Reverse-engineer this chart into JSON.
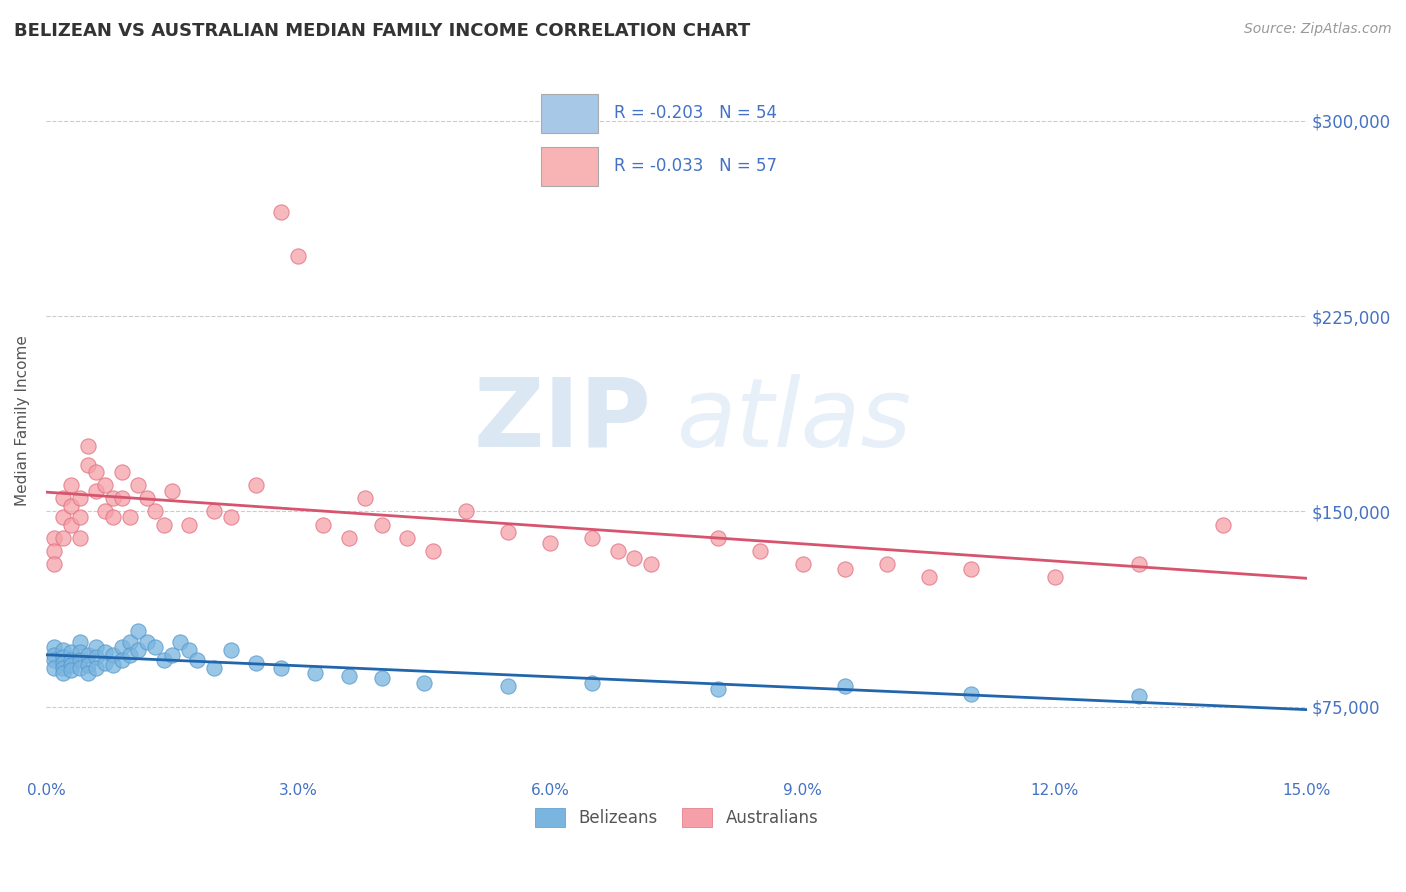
{
  "title": "BELIZEAN VS AUSTRALIAN MEDIAN FAMILY INCOME CORRELATION CHART",
  "source": "Source: ZipAtlas.com",
  "ylabel": "Median Family Income",
  "xlim": [
    0.0,
    0.15
  ],
  "ylim": [
    50000,
    320000
  ],
  "yticks": [
    75000,
    150000,
    225000,
    300000
  ],
  "ytick_labels": [
    "$75,000",
    "$150,000",
    "$225,000",
    "$300,000"
  ],
  "xticks": [
    0.0,
    0.03,
    0.06,
    0.09,
    0.12,
    0.15
  ],
  "xtick_labels": [
    "0.0%",
    "3.0%",
    "6.0%",
    "9.0%",
    "12.0%",
    "15.0%"
  ],
  "belizeans_R": -0.203,
  "belizeans_N": 54,
  "australians_R": -0.033,
  "australians_N": 57,
  "blue_color": "#7ab5e0",
  "pink_color": "#f5a0a8",
  "blue_line_color": "#2166ac",
  "pink_line_color": "#d6546e",
  "legend_blue_patch": "#a8c8e8",
  "legend_pink_patch": "#f8b4b4",
  "tick_color": "#4472c4",
  "grid_color": "#cccccc",
  "watermark_zip": "ZIP",
  "watermark_atlas": "atlas",
  "belizeans_x": [
    0.001,
    0.001,
    0.001,
    0.001,
    0.002,
    0.002,
    0.002,
    0.002,
    0.002,
    0.003,
    0.003,
    0.003,
    0.003,
    0.004,
    0.004,
    0.004,
    0.004,
    0.005,
    0.005,
    0.005,
    0.006,
    0.006,
    0.006,
    0.007,
    0.007,
    0.008,
    0.008,
    0.009,
    0.009,
    0.01,
    0.01,
    0.011,
    0.011,
    0.012,
    0.013,
    0.014,
    0.015,
    0.016,
    0.017,
    0.018,
    0.02,
    0.022,
    0.025,
    0.028,
    0.032,
    0.036,
    0.04,
    0.045,
    0.055,
    0.065,
    0.08,
    0.095,
    0.11,
    0.13
  ],
  "belizeans_y": [
    98000,
    95000,
    93000,
    90000,
    97000,
    94000,
    92000,
    90000,
    88000,
    96000,
    93000,
    91000,
    89000,
    100000,
    96000,
    93000,
    90000,
    95000,
    91000,
    88000,
    98000,
    94000,
    90000,
    96000,
    92000,
    95000,
    91000,
    98000,
    93000,
    100000,
    95000,
    104000,
    97000,
    100000,
    98000,
    93000,
    95000,
    100000,
    97000,
    93000,
    90000,
    97000,
    92000,
    90000,
    88000,
    87000,
    86000,
    84000,
    83000,
    84000,
    82000,
    83000,
    80000,
    79000
  ],
  "australians_x": [
    0.001,
    0.001,
    0.001,
    0.002,
    0.002,
    0.002,
    0.003,
    0.003,
    0.003,
    0.004,
    0.004,
    0.004,
    0.005,
    0.005,
    0.006,
    0.006,
    0.007,
    0.007,
    0.008,
    0.008,
    0.009,
    0.009,
    0.01,
    0.011,
    0.012,
    0.013,
    0.014,
    0.015,
    0.017,
    0.02,
    0.022,
    0.025,
    0.028,
    0.03,
    0.033,
    0.036,
    0.038,
    0.04,
    0.043,
    0.046,
    0.05,
    0.055,
    0.06,
    0.065,
    0.068,
    0.07,
    0.072,
    0.08,
    0.085,
    0.09,
    0.095,
    0.1,
    0.105,
    0.11,
    0.12,
    0.13,
    0.14
  ],
  "australians_y": [
    140000,
    135000,
    130000,
    155000,
    148000,
    140000,
    160000,
    152000,
    145000,
    155000,
    148000,
    140000,
    175000,
    168000,
    165000,
    158000,
    160000,
    150000,
    155000,
    148000,
    165000,
    155000,
    148000,
    160000,
    155000,
    150000,
    145000,
    158000,
    145000,
    150000,
    148000,
    160000,
    265000,
    248000,
    145000,
    140000,
    155000,
    145000,
    140000,
    135000,
    150000,
    142000,
    138000,
    140000,
    135000,
    132000,
    130000,
    140000,
    135000,
    130000,
    128000,
    130000,
    125000,
    128000,
    125000,
    130000,
    145000
  ]
}
